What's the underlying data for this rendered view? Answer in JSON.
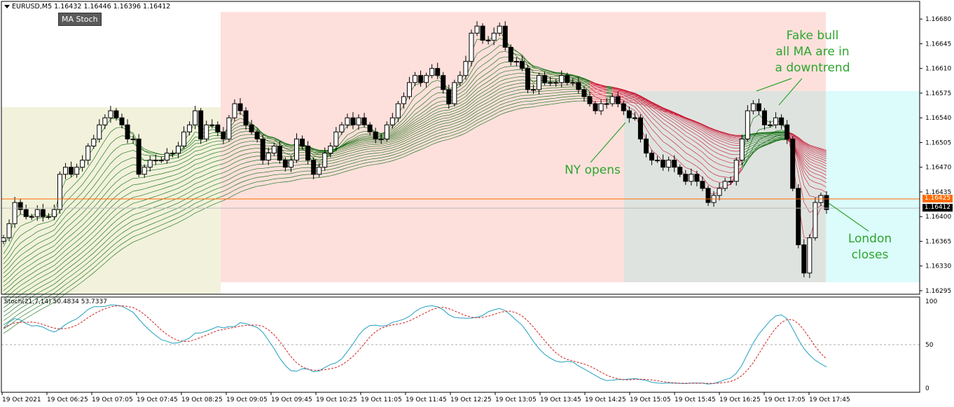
{
  "header": {
    "symbol_text": "EURUSD,M5  1.16432 1.16446 1.16396 1.16412",
    "ma_button_label": "MA Stoch"
  },
  "price_axis": {
    "ticks": [
      "1.16680",
      "1.16645",
      "1.16610",
      "1.16575",
      "1.16540",
      "1.16505",
      "1.16470",
      "1.16435",
      "1.16400",
      "1.16365",
      "1.16330",
      "1.16295"
    ],
    "tick_values": [
      1.1668,
      1.16645,
      1.1661,
      1.16575,
      1.1654,
      1.16505,
      1.1647,
      1.16435,
      1.164,
      1.16365,
      1.1633,
      1.16295
    ],
    "orange_line_label": "1.16425",
    "orange_line_value": 1.16425,
    "current_price_label": "1.16412",
    "current_price_value": 1.16412,
    "range": [
      1.1629,
      1.16705
    ]
  },
  "time_axis": {
    "labels": [
      "19 Oct 2021",
      "19 Oct 06:25",
      "19 Oct 07:05",
      "19 Oct 07:45",
      "19 Oct 08:25",
      "19 Oct 09:05",
      "19 Oct 09:45",
      "19 Oct 10:25",
      "19 Oct 11:05",
      "19 Oct 11:45",
      "19 Oct 12:25",
      "19 Oct 13:05",
      "19 Oct 13:45",
      "19 Oct 14:25",
      "19 Oct 15:05",
      "19 Oct 15:45",
      "19 Oct 16:25",
      "19 Oct 17:05",
      "19 Oct 17:45"
    ]
  },
  "stoch": {
    "header_text": "Stoch(21,7,14) 50.4834 53.7337",
    "ticks": [
      "100",
      "50",
      "0"
    ],
    "tick_values": [
      100,
      50,
      0
    ],
    "main_color": "#20a0c0",
    "signal_color": "#d02020"
  },
  "annotations": {
    "fake_bull": "Fake bull\nall MA are in\na downtrend",
    "ny_opens": "NY opens",
    "london_closes": "London\ncloses"
  },
  "colors": {
    "asia_session": "#f2f2dc",
    "london_session": "#fde0dc",
    "ny_overlap": "#dfe3df",
    "ny_late": "#dcfbfb",
    "ma_bull": "#006400",
    "ma_bear": "#c8102e",
    "annotation": "#2ea52e",
    "orange_line": "#ff6a00"
  },
  "chart_data": {
    "type": "candlestick",
    "timeframe": "M5",
    "symbol": "EURUSD",
    "candles_close_approx": [
      1.1637,
      1.1639,
      1.1642,
      1.1641,
      1.164,
      1.164,
      1.1641,
      1.164,
      1.164,
      1.1641,
      1.1646,
      1.1647,
      1.1646,
      1.1647,
      1.1648,
      1.165,
      1.1651,
      1.1653,
      1.1654,
      1.1655,
      1.1654,
      1.1653,
      1.1651,
      1.1651,
      1.1646,
      1.1647,
      1.1648,
      1.1648,
      1.1648,
      1.1649,
      1.1649,
      1.165,
      1.1652,
      1.1653,
      1.1655,
      1.1651,
      1.1653,
      1.1653,
      1.1652,
      1.1651,
      1.1654,
      1.1656,
      1.1655,
      1.1653,
      1.1652,
      1.1651,
      1.1648,
      1.1649,
      1.165,
      1.1648,
      1.1647,
      1.1648,
      1.1651,
      1.165,
      1.1648,
      1.1646,
      1.1647,
      1.1649,
      1.165,
      1.1652,
      1.1653,
      1.1654,
      1.1653,
      1.1654,
      1.1653,
      1.1652,
      1.1651,
      1.1651,
      1.1653,
      1.1654,
      1.1656,
      1.1657,
      1.1659,
      1.166,
      1.1659,
      1.166,
      1.1661,
      1.166,
      1.1658,
      1.1656,
      1.1659,
      1.166,
      1.1662,
      1.1666,
      1.1667,
      1.1665,
      1.1665,
      1.1666,
      1.1667,
      1.1664,
      1.1662,
      1.1662,
      1.1661,
      1.1658,
      1.1658,
      1.166,
      1.1659,
      1.1659,
      1.1659,
      1.166,
      1.1659,
      1.1659,
      1.1658,
      1.1657,
      1.1656,
      1.1655,
      1.1656,
      1.1656,
      1.1657,
      1.1656,
      1.1655,
      1.1654,
      1.1654,
      1.1651,
      1.1649,
      1.1648,
      1.1648,
      1.1647,
      1.1648,
      1.1647,
      1.1646,
      1.1645,
      1.1646,
      1.1645,
      1.1644,
      1.1642,
      1.1643,
      1.1644,
      1.1645,
      1.1645,
      1.1648,
      1.1651,
      1.1655,
      1.1656,
      1.1655,
      1.1653,
      1.1653,
      1.1654,
      1.1653,
      1.1651,
      1.1644,
      1.1636,
      1.1632,
      1.1637,
      1.1642,
      1.1643,
      1.1641
    ]
  }
}
